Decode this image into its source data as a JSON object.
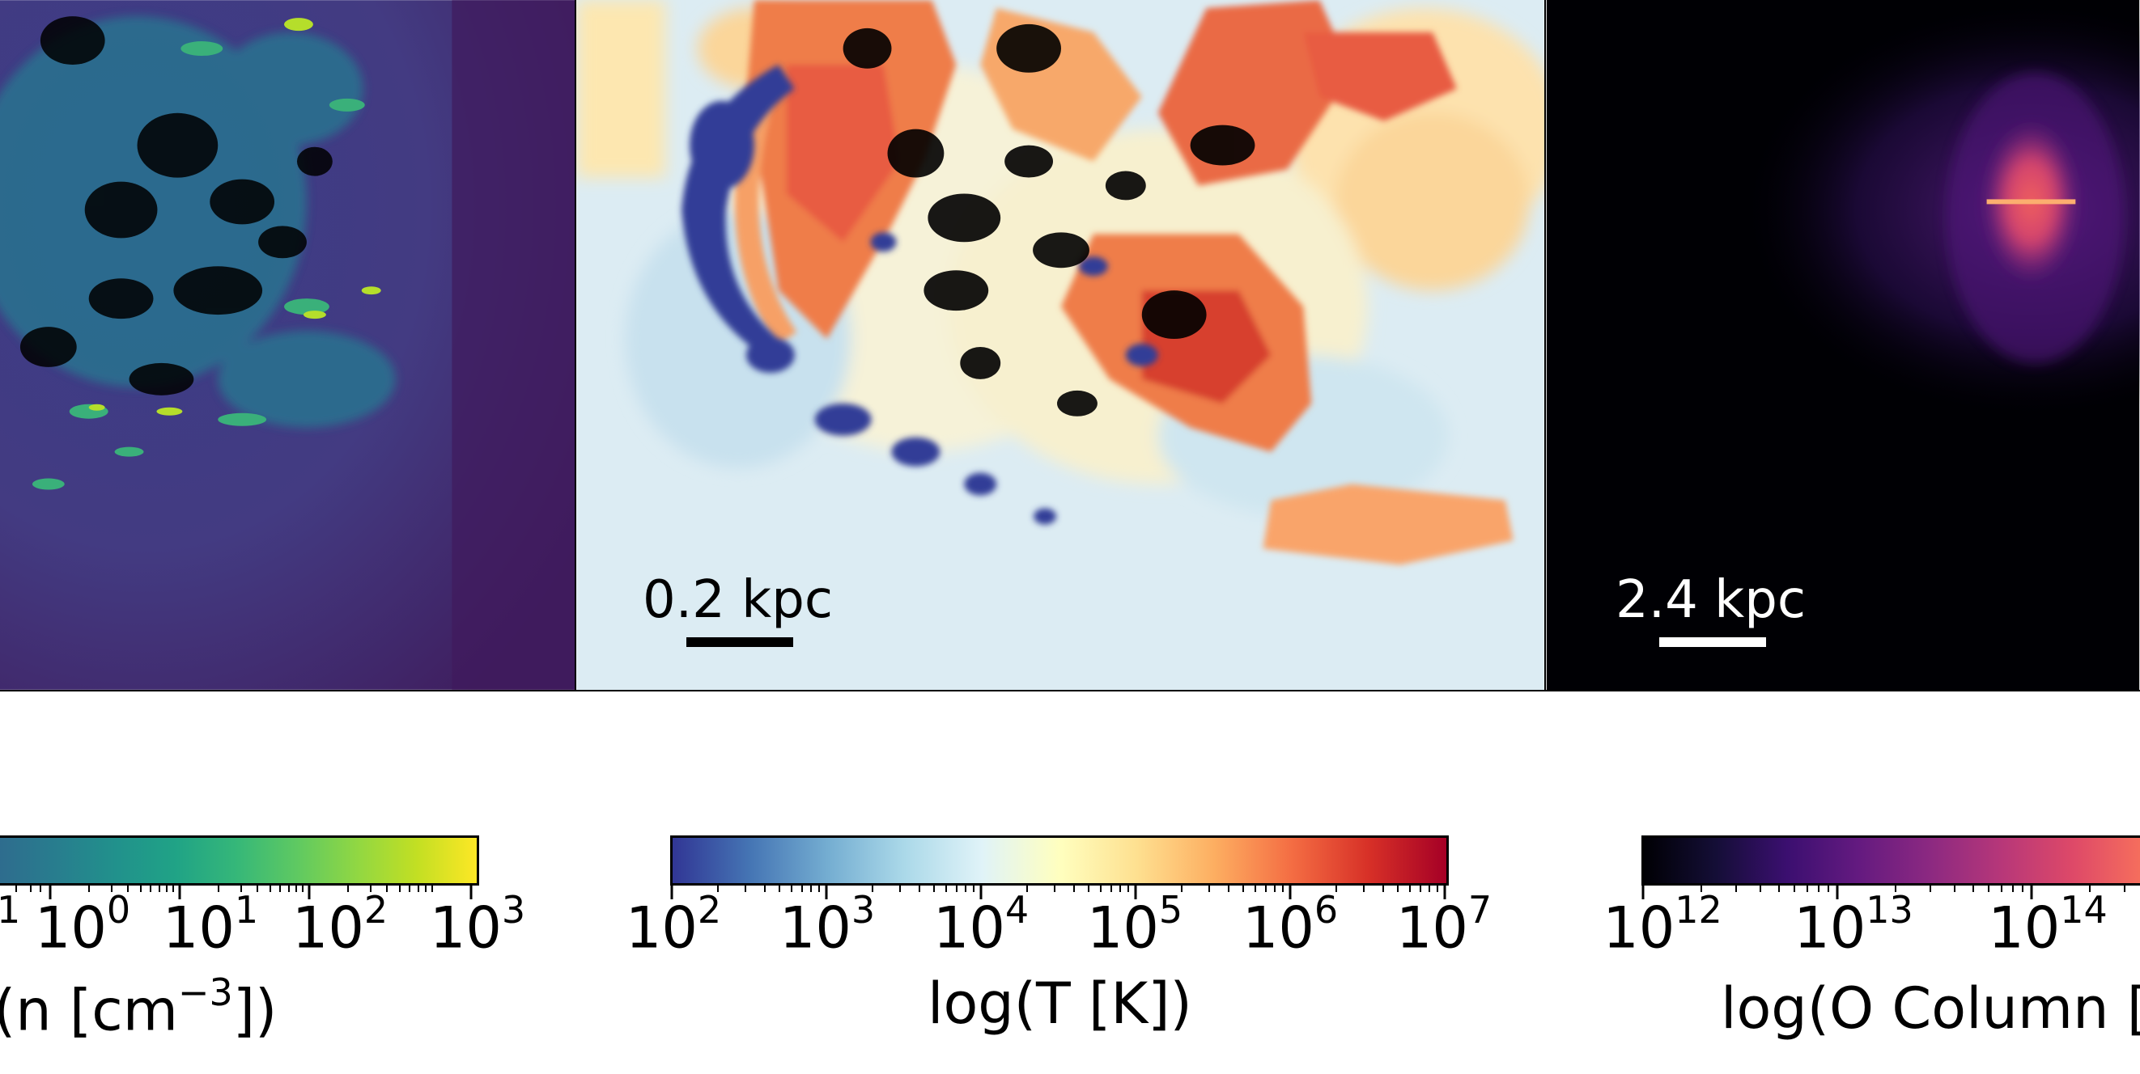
{
  "panels": {
    "temperature": {
      "scale_label": "0.2 kpc"
    },
    "oxygen": {
      "scale_label": "2.4 kpc"
    }
  },
  "colorbars": {
    "density": {
      "colormap": "viridis",
      "ticks": [
        {
          "base": "10",
          "exp": "0"
        },
        {
          "base": "10",
          "exp": "1"
        },
        {
          "base": "10",
          "exp": "2"
        },
        {
          "base": "10",
          "exp": "3"
        }
      ],
      "partial_tick_exp": "1",
      "label_prefix": "(n [cm",
      "label_exp": "−3",
      "label_suffix": "])"
    },
    "temperature": {
      "colormap": "RdYlBu_r",
      "ticks": [
        {
          "base": "10",
          "exp": "2"
        },
        {
          "base": "10",
          "exp": "3"
        },
        {
          "base": "10",
          "exp": "4"
        },
        {
          "base": "10",
          "exp": "5"
        },
        {
          "base": "10",
          "exp": "6"
        },
        {
          "base": "10",
          "exp": "7"
        }
      ],
      "label": "log(T [K])"
    },
    "oxygen": {
      "colormap": "magma",
      "ticks": [
        {
          "base": "10",
          "exp": "12"
        },
        {
          "base": "10",
          "exp": "13"
        },
        {
          "base": "10",
          "exp": "14"
        }
      ],
      "label": "log(O Column ["
    }
  }
}
